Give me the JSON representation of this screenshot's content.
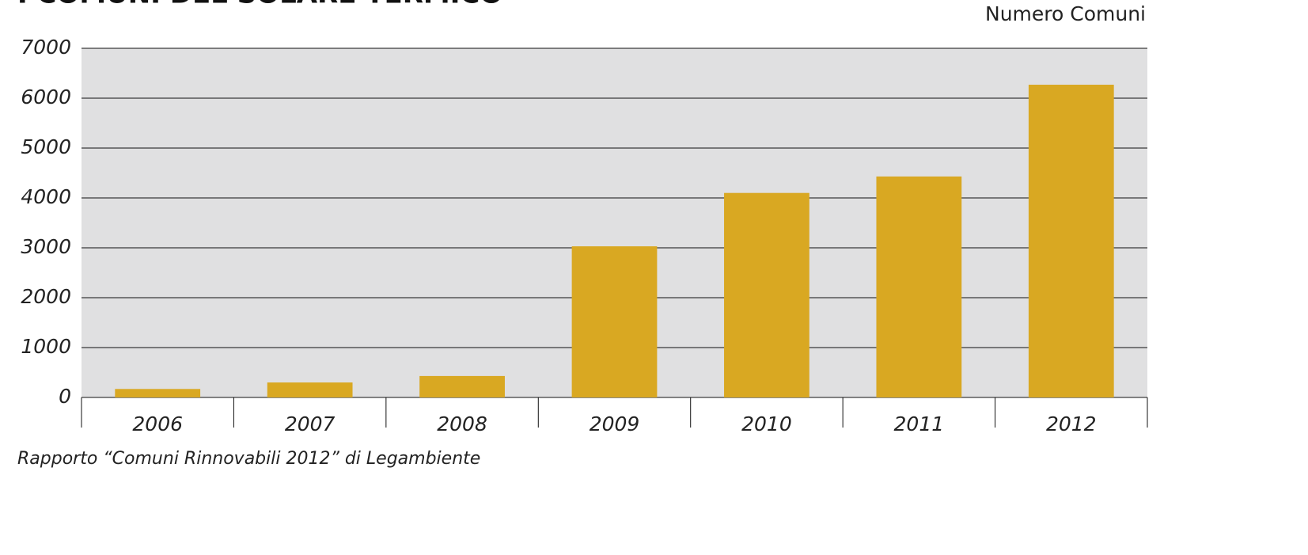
{
  "chart_data": {
    "type": "bar",
    "title": "I COMUNI DEL SOLARE TERMICO",
    "y_axis_label": "Numero Comuni",
    "source": "Rapporto “Comuni Rinnovabili 2012” di Legambiente",
    "categories": [
      "2006",
      "2007",
      "2008",
      "2009",
      "2010",
      "2011",
      "2012"
    ],
    "values": [
      170,
      300,
      430,
      3030,
      4100,
      4430,
      6270
    ],
    "color": "#d9a822",
    "ylim": [
      0,
      7000
    ],
    "yticks": [
      0,
      1000,
      2000,
      3000,
      4000,
      5000,
      6000,
      7000
    ],
    "grid": true
  }
}
